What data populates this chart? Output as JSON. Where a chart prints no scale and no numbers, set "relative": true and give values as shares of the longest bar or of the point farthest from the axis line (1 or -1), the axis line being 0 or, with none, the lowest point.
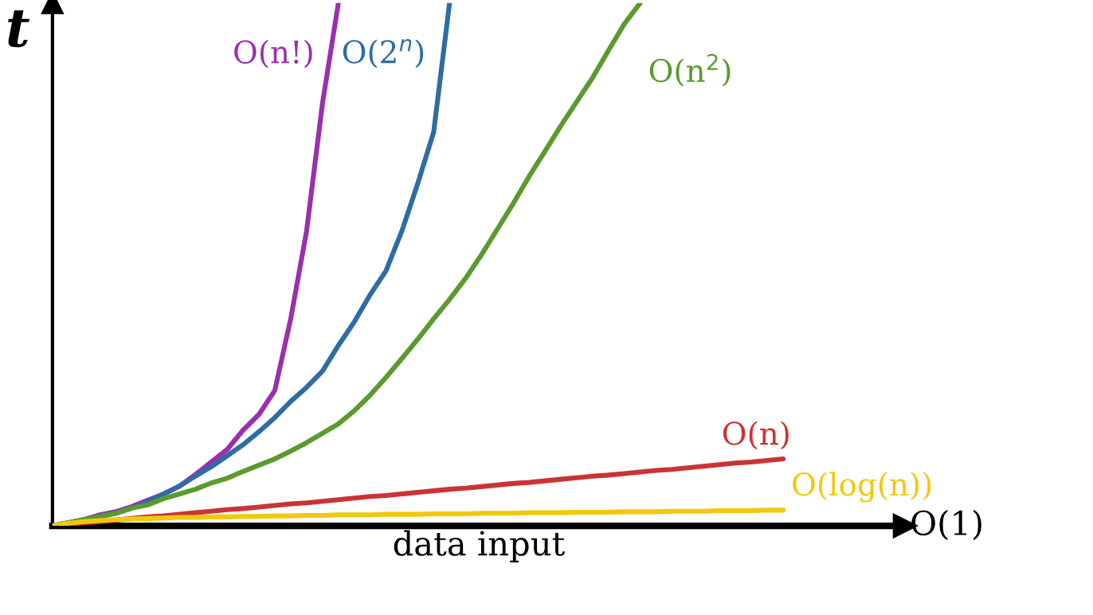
{
  "chart_data": {
    "type": "line",
    "relative": true,
    "xlabel": "data input",
    "ylabel": "t",
    "legend": false,
    "categories": [
      null,
      null,
      null,
      null,
      null,
      null,
      null,
      null,
      null,
      null,
      null,
      null,
      null,
      null,
      null,
      null,
      null,
      null,
      null,
      null,
      null,
      null,
      null,
      null,
      null,
      null,
      null,
      null,
      null,
      null,
      null,
      null,
      null,
      null,
      null,
      null,
      null,
      null,
      null,
      null,
      null,
      null,
      null,
      null,
      null,
      null,
      null
    ],
    "series": [
      {
        "name": "O(n!)",
        "color": "#9b2fae",
        "values": [
          0,
          0.006,
          0.012,
          0.021,
          0.027,
          0.037,
          0.049,
          0.061,
          0.076,
          0.098,
          0.122,
          0.146,
          0.183,
          0.213,
          0.259,
          0.396,
          0.564,
          0.808,
          1,
          null,
          null,
          null,
          null,
          null,
          null,
          null,
          null,
          null,
          null,
          null,
          null,
          null,
          null,
          null,
          null,
          null,
          null,
          null,
          null,
          null,
          null,
          null,
          null,
          null,
          null,
          null,
          null
        ]
      },
      {
        "name": "O(2$^{n}$)",
        "color": "#2e6da4",
        "values": [
          0,
          0.006,
          0.012,
          0.018,
          0.024,
          0.034,
          0.046,
          0.061,
          0.076,
          0.095,
          0.113,
          0.134,
          0.155,
          0.18,
          0.207,
          0.238,
          0.265,
          0.296,
          0.345,
          0.39,
          0.442,
          0.488,
          0.564,
          0.655,
          0.753,
          1,
          null,
          null,
          null,
          null,
          null,
          null,
          null,
          null,
          null,
          null,
          null,
          null,
          null,
          null,
          null,
          null,
          null,
          null,
          null,
          null,
          null
        ]
      },
      {
        "name": "O(n$^{2}$)",
        "color": "#5a9a2e",
        "values": [
          0,
          0.006,
          0.012,
          0.018,
          0.024,
          0.034,
          0.04,
          0.052,
          0.061,
          0.07,
          0.082,
          0.091,
          0.104,
          0.116,
          0.128,
          0.143,
          0.159,
          0.177,
          0.195,
          0.22,
          0.25,
          0.284,
          0.32,
          0.357,
          0.396,
          0.433,
          0.473,
          0.518,
          0.567,
          0.616,
          0.668,
          0.716,
          0.765,
          0.811,
          0.857,
          0.909,
          0.96,
          1,
          null,
          null,
          null,
          null,
          null,
          null,
          null,
          null,
          null
        ]
      },
      {
        "name": "O(n)",
        "color": "#cc3333",
        "values": [
          0,
          0.003,
          0.006,
          0.008,
          0.011,
          0.014,
          0.017,
          0.019,
          0.022,
          0.025,
          0.028,
          0.031,
          0.033,
          0.036,
          0.039,
          0.042,
          0.044,
          0.047,
          0.05,
          0.053,
          0.056,
          0.058,
          0.061,
          0.064,
          0.067,
          0.07,
          0.072,
          0.075,
          0.078,
          0.081,
          0.083,
          0.086,
          0.089,
          0.092,
          0.095,
          0.097,
          0.1,
          0.103,
          0.106,
          0.108,
          0.111,
          0.114,
          0.117,
          0.12,
          0.122,
          0.125,
          0.128
        ]
      },
      {
        "name": "O(log(n))",
        "color": "#f2c80f",
        "values": [
          0,
          0.005,
          0.008,
          0.01,
          0.012,
          0.013,
          0.014,
          0.015,
          0.016,
          0.016,
          0.017,
          0.017,
          0.018,
          0.018,
          0.019,
          0.019,
          0.02,
          0.02,
          0.021,
          0.021,
          0.021,
          0.022,
          0.022,
          0.022,
          0.023,
          0.023,
          0.023,
          0.024,
          0.024,
          0.024,
          0.025,
          0.025,
          0.025,
          0.026,
          0.026,
          0.026,
          0.027,
          0.027,
          0.027,
          0.028,
          0.028,
          0.028,
          0.029,
          0.029,
          0.029,
          0.03,
          0.03
        ]
      }
    ],
    "annotations": [
      "O(1)"
    ]
  }
}
